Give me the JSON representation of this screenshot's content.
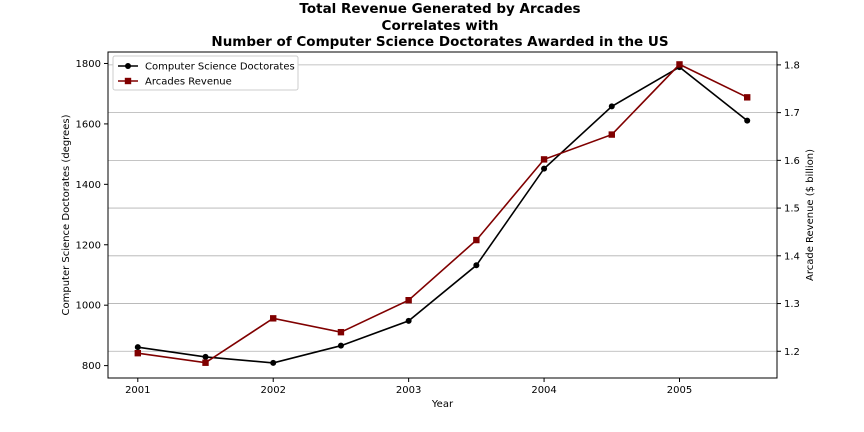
{
  "chart_data": {
    "type": "line",
    "title_lines": [
      "Total Revenue Generated by Arcades",
      "Correlates with",
      "Number of Computer Science Doctorates Awarded in the US"
    ],
    "xlabel": "Year",
    "ylabel_left": "Computer Science Doctorates (degrees)",
    "ylabel_right": "Arcade Revenue ($ billion)",
    "x": [
      2001,
      2001.5,
      2002,
      2002.5,
      2003,
      2003.5,
      2004,
      2004.5,
      2005,
      2005.5
    ],
    "xlim": [
      2000.78,
      2005.72
    ],
    "x_ticks": [
      2001,
      2002,
      2003,
      2004,
      2005
    ],
    "ylim_left": [
      759,
      1838
    ],
    "y_ticks_left": [
      800,
      1000,
      1200,
      1400,
      1600,
      1800
    ],
    "ylim_right": [
      1.144,
      1.827
    ],
    "y_ticks_right": [
      1.2,
      1.3,
      1.4,
      1.5,
      1.6,
      1.7,
      1.8
    ],
    "grid": "horizontal at right-axis ticks",
    "legend_position": "top-left",
    "series": [
      {
        "name": "Computer Science Doctorates",
        "axis": "left",
        "color": "#000000",
        "marker": "circle",
        "values": [
          861,
          829,
          809,
          866,
          948,
          1132,
          1452,
          1658,
          1788,
          1611
        ]
      },
      {
        "name": "Arcades Revenue",
        "axis": "right",
        "color": "#800000",
        "marker": "square",
        "values": [
          1.196,
          1.176,
          1.269,
          1.24,
          1.307,
          1.433,
          1.602,
          1.654,
          1.801,
          1.732
        ]
      }
    ]
  }
}
